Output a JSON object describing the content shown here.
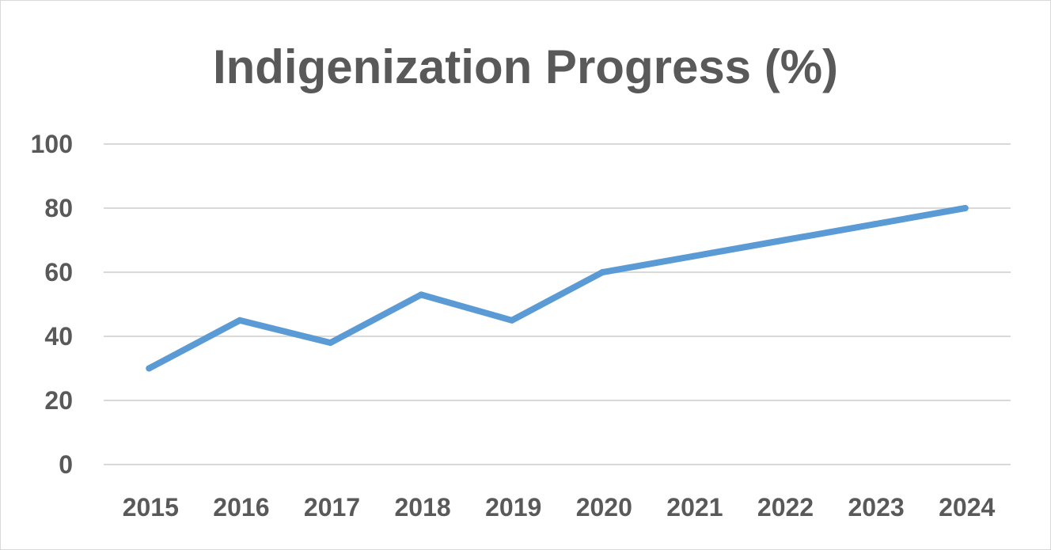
{
  "chart_data": {
    "type": "line",
    "title": "Indigenization Progress (%)",
    "xlabel": "",
    "ylabel": "",
    "categories": [
      "2015",
      "2016",
      "2017",
      "2018",
      "2019",
      "2020",
      "2021",
      "2022",
      "2023",
      "2024"
    ],
    "series": [
      {
        "values": [
          30,
          45,
          38,
          53,
          45,
          60,
          65,
          70,
          75,
          80
        ],
        "color": "#5b9bd5"
      }
    ],
    "ylim": [
      0,
      100
    ],
    "yticks": [
      "0",
      "20",
      "40",
      "60",
      "80",
      "100"
    ],
    "grid": true,
    "legend": "none"
  }
}
